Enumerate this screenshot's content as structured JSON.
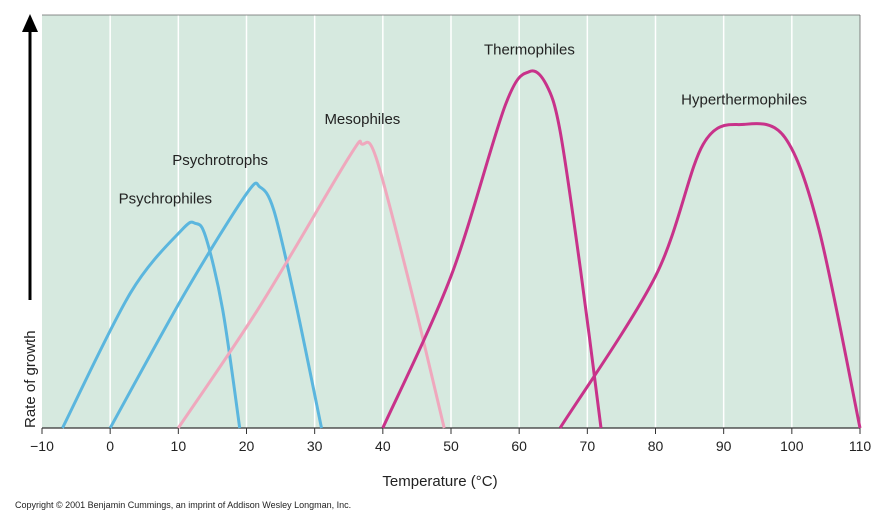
{
  "chart_data": {
    "type": "line",
    "title": "",
    "xlabel": "Temperature (°C)",
    "ylabel": "Rate of growth",
    "xlim": [
      -10,
      110
    ],
    "x_ticks": [
      -10,
      0,
      10,
      20,
      30,
      40,
      50,
      60,
      70,
      80,
      90,
      100,
      110
    ],
    "x_tick_labels": [
      "−10",
      "0",
      "10",
      "20",
      "30",
      "40",
      "50",
      "60",
      "70",
      "80",
      "90",
      "100",
      "110"
    ],
    "y_axis": "relative rate (unlabeled), arrow pointing up",
    "grid": "vertical lines at each x tick",
    "background_color": "#d6e9df",
    "series": [
      {
        "name": "Psychrophiles",
        "color": "#5bb6de",
        "points": [
          [
            -7,
            0
          ],
          [
            3,
            0.41
          ],
          [
            10.5,
            0.6
          ],
          [
            12.5,
            0.62
          ],
          [
            14,
            0.58
          ],
          [
            16.5,
            0.36
          ],
          [
            19,
            0
          ]
        ]
      },
      {
        "name": "Psychrotrophs",
        "color": "#5bb6de",
        "points": [
          [
            0,
            0
          ],
          [
            11,
            0.41
          ],
          [
            20,
            0.71
          ],
          [
            22,
            0.73
          ],
          [
            24,
            0.66
          ],
          [
            27,
            0.4
          ],
          [
            31,
            0
          ]
        ]
      },
      {
        "name": "Mesophiles",
        "color": "#efa8bd",
        "points": [
          [
            10,
            0
          ],
          [
            22,
            0.37
          ],
          [
            35,
            0.82
          ],
          [
            37,
            0.86
          ],
          [
            39,
            0.82
          ],
          [
            44,
            0.43
          ],
          [
            49,
            0
          ]
        ]
      },
      {
        "name": "Thermophiles",
        "color": "#c8328a",
        "points": [
          [
            40,
            0
          ],
          [
            50,
            0.46
          ],
          [
            58,
            0.98
          ],
          [
            61.5,
            1.08
          ],
          [
            64,
            1.04
          ],
          [
            66,
            0.9
          ],
          [
            69,
            0.48
          ],
          [
            72,
            0
          ]
        ]
      },
      {
        "name": "Hyperthermophiles",
        "color": "#c8328a",
        "points": [
          [
            66,
            0
          ],
          [
            80,
            0.46
          ],
          [
            87,
            0.86
          ],
          [
            93,
            0.92
          ],
          [
            99,
            0.88
          ],
          [
            104,
            0.6
          ],
          [
            110,
            0
          ]
        ]
      }
    ],
    "copyright": "Copyright © 2001 Benjamin Cummings, an imprint of Addison Wesley Longman, Inc."
  }
}
